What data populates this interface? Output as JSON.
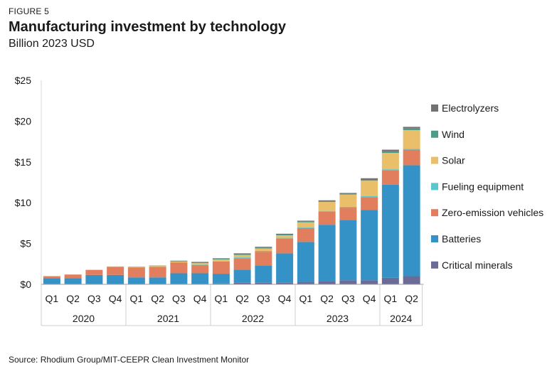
{
  "figure_label": "FIGURE 5",
  "source": "Source: Rhodium Group/MIT-CEEPR Clean Investment Monitor",
  "chart_data": {
    "type": "bar",
    "stacked": true,
    "title": "Manufacturing investment by technology",
    "subtitle": "Billion 2023 USD",
    "categories": [
      "Q1",
      "Q2",
      "Q3",
      "Q4",
      "Q1",
      "Q2",
      "Q3",
      "Q4",
      "Q1",
      "Q2",
      "Q3",
      "Q4",
      "Q1",
      "Q2",
      "Q3",
      "Q4",
      "Q1",
      "Q2"
    ],
    "years": [
      {
        "label": "2020",
        "start": 0,
        "count": 4
      },
      {
        "label": "2021",
        "start": 4,
        "count": 4
      },
      {
        "label": "2022",
        "start": 8,
        "count": 4
      },
      {
        "label": "2023",
        "start": 12,
        "count": 4
      },
      {
        "label": "2024",
        "start": 16,
        "count": 2
      }
    ],
    "ylim": [
      0,
      25
    ],
    "y_ticks": [
      0,
      5,
      10,
      15,
      20,
      25
    ],
    "y_tick_labels": [
      "$0",
      "$5",
      "$10",
      "$15",
      "$20",
      "$25"
    ],
    "legend_position": "right",
    "series": [
      {
        "name": "Critical minerals",
        "color": "#6b6b97",
        "values": [
          0.05,
          0.05,
          0.05,
          0.05,
          0.05,
          0.05,
          0.05,
          0.05,
          0.1,
          0.2,
          0.2,
          0.2,
          0.3,
          0.4,
          0.5,
          0.5,
          0.8,
          1.0
        ]
      },
      {
        "name": "Batteries",
        "color": "#3592c6",
        "values": [
          0.7,
          0.7,
          1.1,
          1.1,
          0.8,
          0.8,
          1.3,
          1.3,
          1.2,
          1.6,
          2.1,
          3.6,
          4.9,
          6.9,
          7.4,
          8.6,
          11.4,
          13.6
        ]
      },
      {
        "name": "Zero-emission vehicles",
        "color": "#e07e5e",
        "values": [
          0.25,
          0.45,
          0.6,
          1.0,
          1.2,
          1.3,
          1.3,
          1.0,
          1.5,
          1.4,
          1.7,
          1.8,
          1.7,
          1.6,
          1.5,
          1.6,
          1.8,
          1.9
        ]
      },
      {
        "name": "Fueling equipment",
        "color": "#5cc6cc",
        "values": [
          0.0,
          0.0,
          0.0,
          0.0,
          0.0,
          0.0,
          0.05,
          0.05,
          0.05,
          0.1,
          0.1,
          0.1,
          0.1,
          0.1,
          0.1,
          0.1,
          0.1,
          0.1
        ]
      },
      {
        "name": "Solar",
        "color": "#eabf6a",
        "values": [
          0.0,
          0.0,
          0.05,
          0.05,
          0.05,
          0.1,
          0.1,
          0.2,
          0.2,
          0.3,
          0.3,
          0.3,
          0.6,
          1.1,
          1.5,
          1.9,
          2.0,
          2.3
        ]
      },
      {
        "name": "Wind",
        "color": "#4d9b89",
        "values": [
          0.0,
          0.0,
          0.0,
          0.0,
          0.05,
          0.05,
          0.1,
          0.1,
          0.1,
          0.1,
          0.1,
          0.1,
          0.1,
          0.1,
          0.1,
          0.1,
          0.2,
          0.2
        ]
      },
      {
        "name": "Electrolyzers",
        "color": "#727272",
        "values": [
          0.0,
          0.0,
          0.0,
          0.0,
          0.0,
          0.0,
          0.0,
          0.05,
          0.05,
          0.1,
          0.1,
          0.1,
          0.1,
          0.1,
          0.1,
          0.2,
          0.2,
          0.2
        ]
      }
    ],
    "legend_order": [
      "Electrolyzers",
      "Wind",
      "Solar",
      "Fueling equipment",
      "Zero-emission vehicles",
      "Batteries",
      "Critical minerals"
    ]
  }
}
